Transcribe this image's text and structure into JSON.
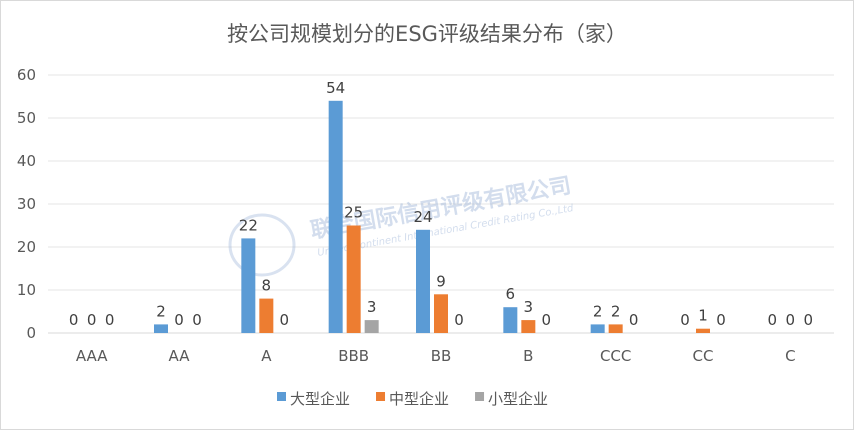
{
  "chart_data": {
    "type": "bar",
    "title": "按公司规模划分的ESG评级结果分布（家）",
    "categories": [
      "AAA",
      "AA",
      "A",
      "BBB",
      "BB",
      "B",
      "CCC",
      "CC",
      "C"
    ],
    "series": [
      {
        "name": "大型企业",
        "color": "#5b9bd5",
        "values": [
          0,
          2,
          22,
          54,
          24,
          6,
          2,
          0,
          0
        ]
      },
      {
        "name": "中型企业",
        "color": "#ed7d31",
        "values": [
          0,
          0,
          8,
          25,
          9,
          3,
          2,
          1,
          0
        ]
      },
      {
        "name": "小型企业",
        "color": "#a5a5a5",
        "values": [
          0,
          0,
          0,
          3,
          0,
          0,
          0,
          0,
          0
        ]
      }
    ],
    "ylim": [
      0,
      60
    ],
    "yticks": [
      0,
      10,
      20,
      30,
      40,
      50,
      60
    ],
    "grid": true,
    "legend_position": "bottom"
  },
  "watermark": {
    "text": "联合国际信用评级有限公司",
    "subtext": "United Continent International Credit Rating Co.,Ltd"
  }
}
